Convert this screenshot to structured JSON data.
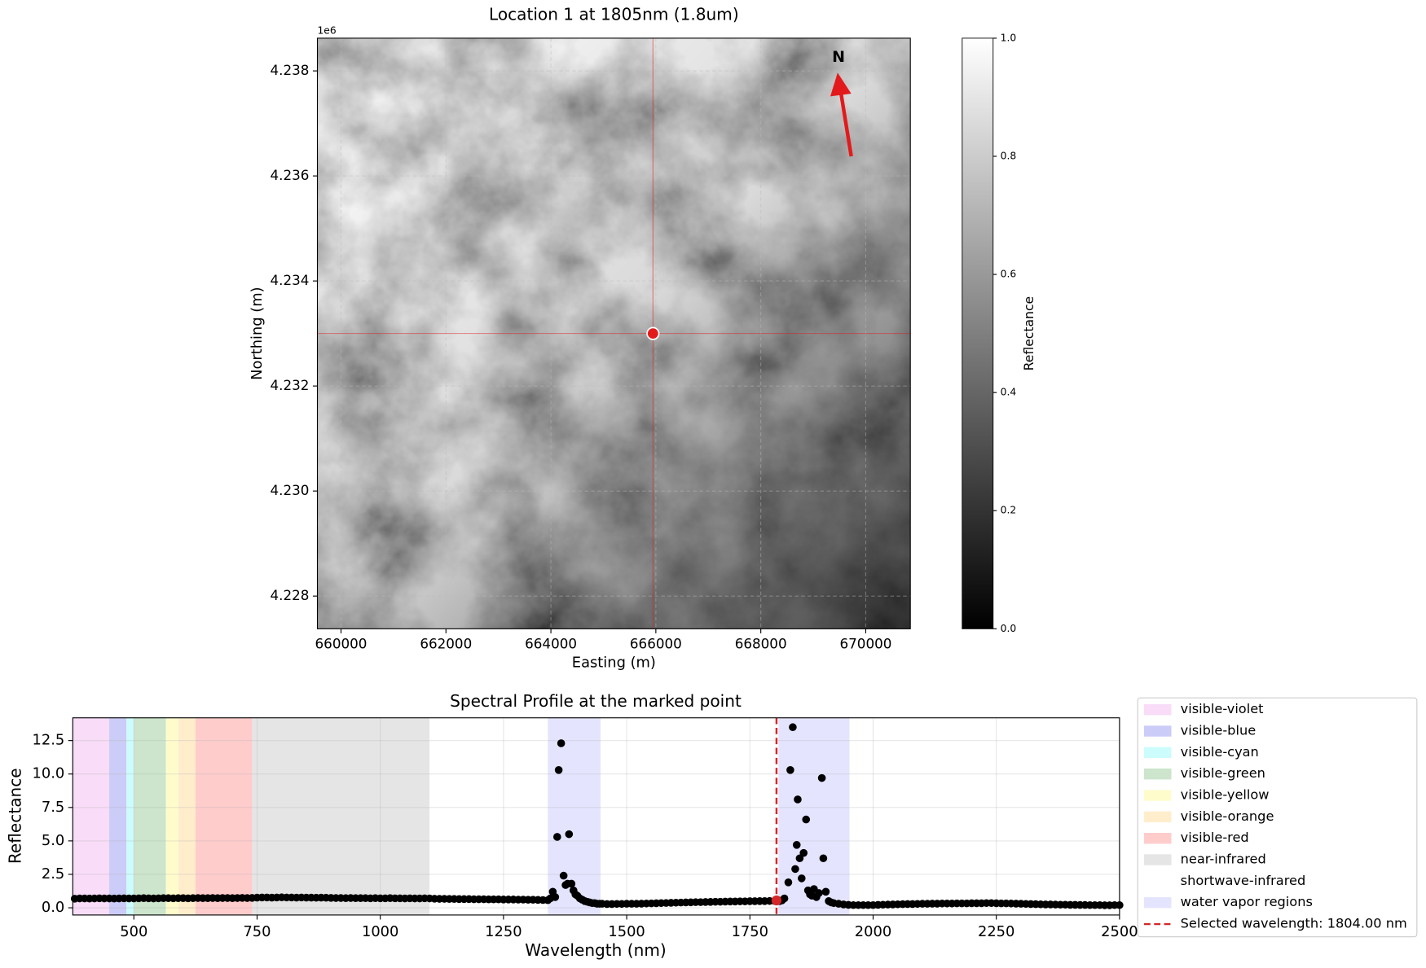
{
  "chart_data": [
    {
      "type": "image",
      "title": "Location 1 at 1805nm (1.8um)",
      "xlabel": "Easting (m)",
      "ylabel": "Northing (m)",
      "xlim": [
        659550,
        670850
      ],
      "ylim": [
        4227377,
        4238623
      ],
      "xticks": [
        660000,
        662000,
        664000,
        666000,
        668000,
        670000
      ],
      "yticks": [
        {
          "value": 4228000,
          "label": "4.228"
        },
        {
          "value": 4230000,
          "label": "4.230"
        },
        {
          "value": 4232000,
          "label": "4.232"
        },
        {
          "value": 4234000,
          "label": "4.234"
        },
        {
          "value": 4236000,
          "label": "4.236"
        },
        {
          "value": 4238000,
          "label": "4.238"
        }
      ],
      "y_offset_label": "1e6",
      "grid": true,
      "marker": {
        "x": 665945,
        "y": 4233000,
        "color": "#e31a1c"
      },
      "annotation": {
        "text": "N",
        "color": "#e31a1c"
      },
      "colorbar": {
        "label": "Reflectance",
        "colormap": "gray",
        "lim": [
          0,
          1
        ],
        "ticks": [
          {
            "value": 0,
            "label": "0.0"
          },
          0.2,
          0.4,
          0.6,
          0.8,
          {
            "value": 1,
            "label": "1.0"
          }
        ]
      }
    },
    {
      "type": "scatter",
      "title": "Spectral Profile at the marked point",
      "xlabel": "Wavelength (nm)",
      "ylabel": "Reflectance",
      "xlim": [
        376,
        2500
      ],
      "ylim": [
        -0.54,
        14.2
      ],
      "xticks": [
        500,
        750,
        1000,
        1250,
        1500,
        1750,
        2000,
        2250,
        2500
      ],
      "yticks": [
        {
          "value": 0,
          "label": "0.0"
        },
        2.5,
        {
          "value": 5,
          "label": "5.0"
        },
        7.5,
        {
          "value": 10,
          "label": "10.0"
        },
        12.5
      ],
      "grid": true,
      "color": "#000000",
      "legend": "outside right",
      "spans": [
        {
          "name": "visible-violet",
          "color": "#f8dcf8",
          "ranges": [
            [
              376,
              450
            ]
          ]
        },
        {
          "name": "visible-blue",
          "color": "#ccccf8",
          "ranges": [
            [
              450,
              485
            ]
          ]
        },
        {
          "name": "visible-cyan",
          "color": "#ccfcfc",
          "ranges": [
            [
              485,
              500
            ]
          ]
        },
        {
          "name": "visible-green",
          "color": "#cce5cc",
          "ranges": [
            [
              500,
              565
            ]
          ]
        },
        {
          "name": "visible-yellow",
          "color": "#fffccc",
          "ranges": [
            [
              565,
              590
            ]
          ]
        },
        {
          "name": "visible-orange",
          "color": "#ffedcc",
          "ranges": [
            [
              590,
              625
            ]
          ]
        },
        {
          "name": "visible-red",
          "color": "#ffcccc",
          "ranges": [
            [
              625,
              740
            ]
          ]
        },
        {
          "name": "near-infrared",
          "color": "#e5e5e5",
          "ranges": [
            [
              740,
              1100
            ]
          ]
        },
        {
          "name": "shortwave-infrared",
          "color": "#ffffff",
          "ranges": [
            [
              1100,
              2500
            ]
          ]
        },
        {
          "name": "water vapor regions",
          "color": "#e4e4ff",
          "ranges": [
            [
              1340,
              1447
            ],
            [
              1808,
              1952
            ]
          ]
        }
      ],
      "selected": {
        "name": "Selected wavelength: 1804.00 nm",
        "x": 1804,
        "value": 0.55,
        "color": "#d62728"
      },
      "x": [
        380,
        390,
        400,
        410,
        420,
        430,
        440,
        450,
        460,
        470,
        480,
        490,
        500,
        510,
        520,
        530,
        540,
        550,
        560,
        570,
        580,
        590,
        600,
        610,
        620,
        630,
        640,
        650,
        660,
        670,
        680,
        690,
        700,
        710,
        720,
        730,
        740,
        750,
        760,
        770,
        780,
        790,
        800,
        810,
        820,
        830,
        840,
        850,
        860,
        870,
        880,
        890,
        900,
        910,
        920,
        930,
        940,
        950,
        960,
        970,
        980,
        990,
        1000,
        1010,
        1020,
        1030,
        1040,
        1050,
        1060,
        1070,
        1080,
        1090,
        1100,
        1110,
        1120,
        1130,
        1140,
        1150,
        1160,
        1170,
        1180,
        1190,
        1200,
        1210,
        1220,
        1230,
        1240,
        1250,
        1260,
        1270,
        1280,
        1290,
        1300,
        1310,
        1320,
        1330,
        1340,
        1345,
        1350,
        1355,
        1359,
        1362,
        1367,
        1372,
        1376,
        1380,
        1383,
        1388,
        1392,
        1396,
        1400,
        1405,
        1410,
        1415,
        1420,
        1425,
        1430,
        1435,
        1440,
        1445,
        1450,
        1460,
        1470,
        1480,
        1490,
        1500,
        1510,
        1520,
        1530,
        1540,
        1550,
        1560,
        1570,
        1580,
        1590,
        1600,
        1610,
        1620,
        1630,
        1640,
        1650,
        1660,
        1670,
        1680,
        1690,
        1700,
        1710,
        1720,
        1730,
        1740,
        1750,
        1760,
        1770,
        1780,
        1790,
        1800,
        1810,
        1815,
        1820,
        1828,
        1832,
        1837,
        1842,
        1845,
        1847,
        1851,
        1855,
        1859,
        1864,
        1868,
        1872,
        1876,
        1880,
        1885,
        1890,
        1896,
        1899,
        1904,
        1910,
        1915,
        1920,
        1930,
        1940,
        1950,
        1960,
        1970,
        1980,
        1990,
        2000,
        2010,
        2020,
        2030,
        2040,
        2050,
        2060,
        2070,
        2080,
        2090,
        2100,
        2110,
        2120,
        2130,
        2140,
        2150,
        2160,
        2170,
        2180,
        2190,
        2200,
        2210,
        2220,
        2230,
        2240,
        2250,
        2260,
        2270,
        2280,
        2290,
        2300,
        2310,
        2320,
        2330,
        2340,
        2350,
        2360,
        2370,
        2380,
        2390,
        2400,
        2410,
        2420,
        2430,
        2440,
        2450,
        2460,
        2470,
        2480,
        2490,
        2500
      ],
      "values": [
        0.68,
        0.7,
        0.7,
        0.69,
        0.7,
        0.71,
        0.7,
        0.7,
        0.69,
        0.7,
        0.71,
        0.7,
        0.7,
        0.71,
        0.72,
        0.71,
        0.7,
        0.71,
        0.72,
        0.72,
        0.71,
        0.72,
        0.72,
        0.71,
        0.72,
        0.73,
        0.72,
        0.72,
        0.73,
        0.72,
        0.73,
        0.73,
        0.72,
        0.73,
        0.74,
        0.73,
        0.74,
        0.76,
        0.77,
        0.77,
        0.76,
        0.77,
        0.78,
        0.77,
        0.77,
        0.76,
        0.77,
        0.76,
        0.76,
        0.75,
        0.76,
        0.75,
        0.74,
        0.73,
        0.73,
        0.72,
        0.73,
        0.72,
        0.72,
        0.72,
        0.71,
        0.72,
        0.71,
        0.71,
        0.72,
        0.71,
        0.71,
        0.7,
        0.71,
        0.7,
        0.7,
        0.71,
        0.7,
        0.68,
        0.67,
        0.67,
        0.66,
        0.66,
        0.65,
        0.65,
        0.65,
        0.64,
        0.64,
        0.64,
        0.63,
        0.63,
        0.63,
        0.62,
        0.62,
        0.62,
        0.61,
        0.61,
        0.6,
        0.6,
        0.59,
        0.58,
        0.57,
        0.7,
        1.2,
        0.8,
        5.3,
        10.3,
        12.3,
        2.4,
        1.7,
        1.8,
        5.5,
        1.8,
        1.3,
        1.0,
        0.9,
        0.7,
        0.6,
        0.5,
        0.45,
        0.4,
        0.35,
        0.35,
        0.3,
        0.3,
        0.3,
        0.28,
        0.28,
        0.29,
        0.29,
        0.3,
        0.3,
        0.3,
        0.31,
        0.32,
        0.33,
        0.34,
        0.35,
        0.36,
        0.37,
        0.38,
        0.39,
        0.4,
        0.41,
        0.42,
        0.42,
        0.43,
        0.44,
        0.45,
        0.45,
        0.46,
        0.47,
        0.47,
        0.48,
        0.48,
        0.49,
        0.49,
        0.5,
        0.5,
        0.51,
        0.51,
        0.5,
        0.55,
        0.7,
        1.9,
        10.3,
        13.5,
        2.9,
        4.7,
        8.1,
        3.7,
        2.2,
        4.1,
        6.6,
        1.3,
        1.0,
        0.9,
        1.4,
        0.8,
        1.1,
        9.7,
        3.7,
        1.2,
        0.5,
        0.4,
        0.35,
        0.3,
        0.25,
        0.22,
        0.2,
        0.2,
        0.2,
        0.2,
        0.2,
        0.22,
        0.23,
        0.24,
        0.25,
        0.26,
        0.27,
        0.28,
        0.28,
        0.29,
        0.3,
        0.3,
        0.31,
        0.31,
        0.32,
        0.32,
        0.32,
        0.33,
        0.33,
        0.33,
        0.34,
        0.34,
        0.34,
        0.35,
        0.35,
        0.34,
        0.33,
        0.33,
        0.32,
        0.31,
        0.3,
        0.29,
        0.28,
        0.27,
        0.26,
        0.25,
        0.25,
        0.24,
        0.23,
        0.23,
        0.22,
        0.22,
        0.21,
        0.21,
        0.2,
        0.2,
        0.2,
        0.19,
        0.19,
        0.2,
        0.2
      ]
    }
  ]
}
